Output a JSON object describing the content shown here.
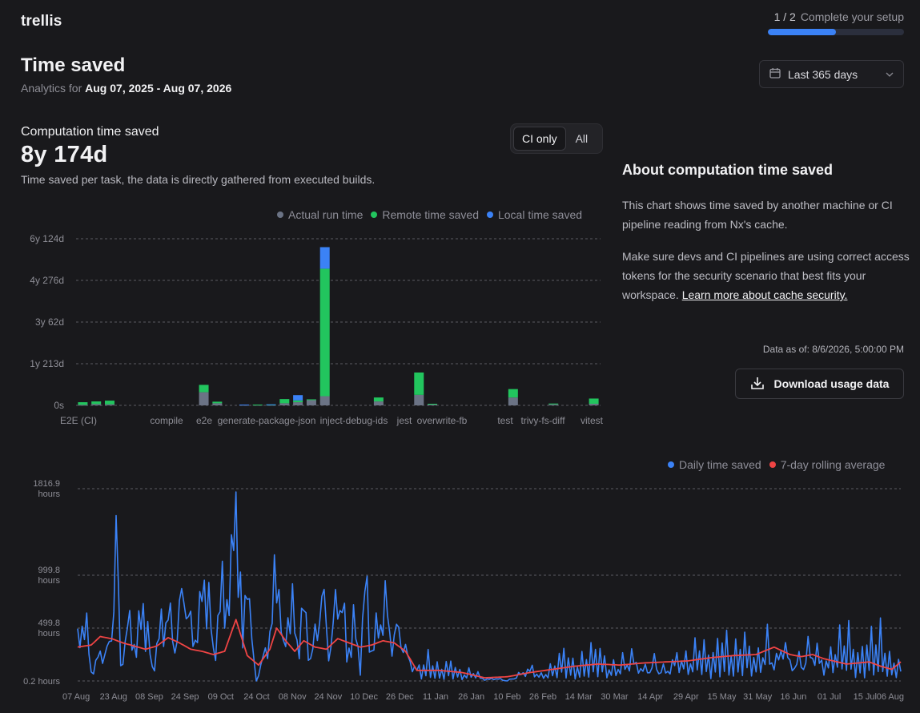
{
  "brand": "trellis",
  "setup": {
    "count": "1 / 2",
    "label": "Complete your setup",
    "progress": 0.5
  },
  "page": {
    "title": "Time saved",
    "subtitle_prefix": "Analytics for",
    "subtitle_range": "Aug 07, 2025 - Aug 07, 2026"
  },
  "range_select": {
    "value": "Last 365 days"
  },
  "computation": {
    "label": "Computation time saved",
    "value": "8y 174d",
    "description": "Time saved per task, the data is directly gathered from executed builds."
  },
  "toggle": {
    "options": [
      "CI only",
      "All"
    ],
    "selected": "CI only"
  },
  "about": {
    "title": "About computation time saved",
    "p1": "This chart shows time saved by another machine or CI pipeline reading from Nx's cache.",
    "p2": "Make sure devs and CI pipelines are using correct access tokens for the security scenario that best fits your workspace.",
    "link": "Learn more about cache security.",
    "data_as_of": "Data as of: 8/6/2026, 5:00:00 PM",
    "download_label": "Download usage data"
  },
  "colors": {
    "actual": "#6b7385",
    "remote": "#22c55e",
    "local": "#3b82f6",
    "rolling": "#ef4444"
  },
  "chart_data": [
    {
      "type": "bar",
      "stacked": true,
      "legend_position": "top-right",
      "grid": true,
      "y_ticks": [
        "0s",
        "1y 213d",
        "3y 62d",
        "4y 276d",
        "6y 124d"
      ],
      "ylim": [
        0,
        6.34
      ],
      "y_unit": "years",
      "x_tick_labels": [
        "E2E (CI)",
        "compile",
        "e2e",
        "generate-package-json",
        "inject-debug-ids",
        "jest",
        "overwrite-fb",
        "test",
        "trivy-fs-diff",
        "vitest"
      ],
      "series": [
        {
          "name": "Actual run time",
          "color": "#6b7385",
          "values": [
            0.02,
            0.05,
            0.04,
            0,
            0,
            0,
            0,
            0,
            0,
            0.5,
            0.08,
            0,
            0.02,
            0.02,
            0.02,
            0.08,
            0.12,
            0.2,
            0.35,
            0,
            0,
            0,
            0.15,
            0,
            0,
            0.4,
            0.04,
            0,
            0,
            0,
            0,
            0,
            0.3,
            0,
            0,
            0.04,
            0,
            0,
            0.06
          ]
        },
        {
          "name": "Remote time saved",
          "color": "#22c55e",
          "values": [
            0.1,
            0.1,
            0.14,
            0,
            0,
            0,
            0,
            0,
            0,
            0.28,
            0.06,
            0,
            0,
            0.01,
            0.01,
            0.16,
            0.07,
            0.03,
            4.85,
            0,
            0,
            0,
            0.15,
            0,
            0,
            0.85,
            0.02,
            0,
            0,
            0,
            0,
            0,
            0.32,
            0,
            0,
            0.03,
            0,
            0,
            0.2
          ]
        },
        {
          "name": "Local time saved",
          "color": "#3b82f6",
          "values": [
            0,
            0,
            0,
            0,
            0,
            0,
            0,
            0,
            0,
            0,
            0,
            0,
            0.01,
            0,
            0.01,
            0,
            0.2,
            0,
            0.82,
            0,
            0,
            0,
            0,
            0,
            0,
            0,
            0,
            0,
            0,
            0,
            0,
            0,
            0,
            0,
            0,
            0,
            0,
            0,
            0
          ]
        }
      ]
    },
    {
      "type": "line",
      "legend_position": "top-right",
      "grid": true,
      "y_ticks": [
        "0.2 hours",
        "499.8 hours",
        "999.8 hours",
        "1816.9 hours"
      ],
      "y_tick_values": [
        0.2,
        499.8,
        999.8,
        1816.9
      ],
      "ylim": [
        0.2,
        1816.9
      ],
      "x_ticks": [
        "07 Aug",
        "23 Aug",
        "08 Sep",
        "24 Sep",
        "09 Oct",
        "24 Oct",
        "08 Nov",
        "24 Nov",
        "10 Dec",
        "26 Dec",
        "11 Jan",
        "26 Jan",
        "10 Feb",
        "26 Feb",
        "14 Mar",
        "30 Mar",
        "14 Apr",
        "29 Apr",
        "15 May",
        "31 May",
        "16 Jun",
        "01 Jul",
        "15 Jul",
        "06 Aug"
      ],
      "series": [
        {
          "name": "Daily time saved",
          "color": "#3b82f6",
          "anchors": [
            [
              0,
              320
            ],
            [
              3,
              620
            ],
            [
              6,
              80
            ],
            [
              10,
              240
            ],
            [
              14,
              300
            ],
            [
              15,
              420
            ],
            [
              17,
              1460
            ],
            [
              19,
              120
            ],
            [
              22,
              510
            ],
            [
              26,
              310
            ],
            [
              29,
              690
            ],
            [
              33,
              110
            ],
            [
              37,
              490
            ],
            [
              40,
              620
            ],
            [
              43,
              320
            ],
            [
              47,
              880
            ],
            [
              51,
              350
            ],
            [
              54,
              610
            ],
            [
              57,
              990
            ],
            [
              60,
              230
            ],
            [
              63,
              730
            ],
            [
              66,
              780
            ],
            [
              68,
              920
            ],
            [
              70,
              1810
            ],
            [
              73,
              280
            ],
            [
              75,
              1220
            ],
            [
              77,
              330
            ],
            [
              79,
              0
            ],
            [
              82,
              200
            ],
            [
              86,
              520
            ],
            [
              88,
              1190
            ],
            [
              91,
              250
            ],
            [
              94,
              760
            ],
            [
              97,
              340
            ],
            [
              100,
              640
            ],
            [
              103,
              210
            ],
            [
              106,
              480
            ],
            [
              108,
              870
            ],
            [
              111,
              250
            ],
            [
              114,
              640
            ],
            [
              117,
              830
            ],
            [
              119,
              190
            ],
            [
              122,
              530
            ],
            [
              125,
              120
            ],
            [
              127,
              880
            ],
            [
              130,
              280
            ],
            [
              133,
              500
            ],
            [
              136,
              690
            ],
            [
              139,
              360
            ],
            [
              142,
              470
            ],
            [
              146,
              210
            ],
            [
              150,
              90
            ],
            [
              155,
              180
            ],
            [
              160,
              90
            ],
            [
              165,
              150
            ],
            [
              170,
              60
            ],
            [
              175,
              110
            ],
            [
              180,
              20
            ],
            [
              185,
              40
            ],
            [
              190,
              0
            ],
            [
              195,
              90
            ],
            [
              200,
              170
            ],
            [
              205,
              60
            ],
            [
              210,
              130
            ],
            [
              215,
              240
            ],
            [
              220,
              110
            ],
            [
              225,
              200
            ],
            [
              230,
              280
            ],
            [
              235,
              120
            ],
            [
              240,
              190
            ],
            [
              245,
              320
            ],
            [
              250,
              160
            ],
            [
              255,
              260
            ],
            [
              260,
              140
            ],
            [
              265,
              300
            ],
            [
              270,
              210
            ],
            [
              275,
              330
            ],
            [
              280,
              180
            ],
            [
              285,
              330
            ],
            [
              290,
              220
            ],
            [
              295,
              340
            ],
            [
              300,
              200
            ],
            [
              305,
              430
            ],
            [
              309,
              250
            ],
            [
              312,
              620
            ],
            [
              315,
              260
            ],
            [
              320,
              300
            ],
            [
              325,
              480
            ],
            [
              330,
              200
            ],
            [
              335,
              330
            ],
            [
              340,
              420
            ],
            [
              345,
              190
            ],
            [
              350,
              310
            ],
            [
              355,
              360
            ],
            [
              360,
              150
            ],
            [
              364,
              200
            ]
          ]
        },
        {
          "name": "7-day rolling average",
          "color": "#ef4444",
          "anchors": [
            [
              0,
              320
            ],
            [
              6,
              340
            ],
            [
              10,
              420
            ],
            [
              15,
              400
            ],
            [
              20,
              360
            ],
            [
              25,
              330
            ],
            [
              30,
              300
            ],
            [
              35,
              330
            ],
            [
              40,
              410
            ],
            [
              45,
              360
            ],
            [
              50,
              300
            ],
            [
              55,
              280
            ],
            [
              60,
              250
            ],
            [
              65,
              280
            ],
            [
              70,
              580
            ],
            [
              75,
              240
            ],
            [
              80,
              150
            ],
            [
              85,
              300
            ],
            [
              88,
              500
            ],
            [
              92,
              380
            ],
            [
              96,
              280
            ],
            [
              100,
              380
            ],
            [
              105,
              320
            ],
            [
              110,
              300
            ],
            [
              115,
              400
            ],
            [
              120,
              360
            ],
            [
              125,
              320
            ],
            [
              130,
              340
            ],
            [
              135,
              380
            ],
            [
              140,
              360
            ],
            [
              145,
              280
            ],
            [
              150,
              100
            ],
            [
              160,
              100
            ],
            [
              170,
              80
            ],
            [
              180,
              30
            ],
            [
              190,
              40
            ],
            [
              200,
              80
            ],
            [
              210,
              110
            ],
            [
              220,
              140
            ],
            [
              230,
              160
            ],
            [
              240,
              150
            ],
            [
              250,
              170
            ],
            [
              260,
              180
            ],
            [
              270,
              190
            ],
            [
              280,
              220
            ],
            [
              290,
              240
            ],
            [
              300,
              250
            ],
            [
              308,
              320
            ],
            [
              315,
              250
            ],
            [
              320,
              230
            ],
            [
              325,
              250
            ],
            [
              330,
              210
            ],
            [
              340,
              160
            ],
            [
              350,
              180
            ],
            [
              355,
              140
            ],
            [
              360,
              110
            ],
            [
              364,
              180
            ]
          ]
        }
      ]
    }
  ]
}
